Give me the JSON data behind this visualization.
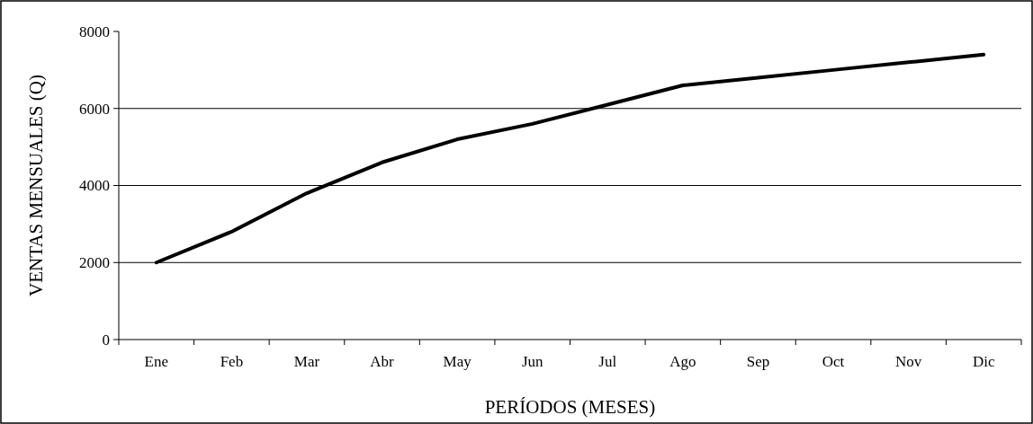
{
  "chart_data": {
    "type": "line",
    "xlabel": "PERÍODOS (MESES)",
    "ylabel": "VENTAS MENSUALES (Q)",
    "categories": [
      "Ene",
      "Feb",
      "Mar",
      "Abr",
      "May",
      "Jun",
      "Jul",
      "Ago",
      "Sep",
      "Oct",
      "Nov",
      "Dic"
    ],
    "series": [
      {
        "color": "#000000",
        "values": [
          2000,
          2800,
          3800,
          4600,
          5200,
          5600,
          6100,
          6600,
          6800,
          7000,
          7200,
          7400
        ]
      }
    ],
    "ylim": [
      0,
      8000
    ],
    "yticks": [
      0,
      2000,
      4000,
      6000,
      8000
    ],
    "grid": "y",
    "marker": "none",
    "line_style": "solid"
  }
}
